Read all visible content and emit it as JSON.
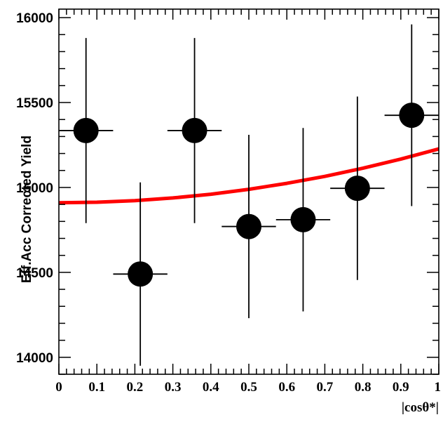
{
  "chart_data": {
    "type": "scatter",
    "title": "",
    "xlabel": "|cosθ*|",
    "ylabel": "Eff.Acc Corrected Yield",
    "xlim": [
      0,
      1
    ],
    "ylim": [
      13900,
      16050
    ],
    "x_ticks": [
      {
        "value": 0,
        "label": "0"
      },
      {
        "value": 0.1,
        "label": "0.1"
      },
      {
        "value": 0.2,
        "label": "0.2"
      },
      {
        "value": 0.3,
        "label": "0.3"
      },
      {
        "value": 0.4,
        "label": "0.4"
      },
      {
        "value": 0.5,
        "label": "0.5"
      },
      {
        "value": 0.6,
        "label": "0.6"
      },
      {
        "value": 0.7,
        "label": "0.7"
      },
      {
        "value": 0.8,
        "label": "0.8"
      },
      {
        "value": 0.9,
        "label": "0.9"
      },
      {
        "value": 1,
        "label": "1"
      }
    ],
    "y_ticks": [
      {
        "value": 14000,
        "label": "14000"
      },
      {
        "value": 14500,
        "label": "14500"
      },
      {
        "value": 15000,
        "label": "15000"
      },
      {
        "value": 15500,
        "label": "15500"
      },
      {
        "value": 16000,
        "label": "16000"
      }
    ],
    "grid": false,
    "series": [
      {
        "points": [
          {
            "x": 0.0714,
            "y": 15335,
            "xerr": 0.0714,
            "yerr": 545
          },
          {
            "x": 0.2143,
            "y": 14490,
            "xerr": 0.0714,
            "yerr": 540
          },
          {
            "x": 0.3571,
            "y": 15335,
            "xerr": 0.0714,
            "yerr": 545
          },
          {
            "x": 0.5,
            "y": 14770,
            "xerr": 0.0714,
            "yerr": 540
          },
          {
            "x": 0.6429,
            "y": 14810,
            "xerr": 0.0714,
            "yerr": 540
          },
          {
            "x": 0.7857,
            "y": 14995,
            "xerr": 0.0714,
            "yerr": 540
          },
          {
            "x": 0.9286,
            "y": 15425,
            "xerr": 0.0714,
            "yerr": 535
          }
        ],
        "color": "#000000"
      },
      {
        "type": "line",
        "x": [
          0,
          0.1,
          0.2,
          0.3,
          0.4,
          0.5,
          0.6,
          0.7,
          0.8,
          0.9,
          1.0
        ],
        "y": [
          14910,
          14913,
          14922,
          14938,
          14960,
          14989,
          15024,
          15065,
          15113,
          15167,
          15227
        ],
        "color": "#ff0000"
      }
    ]
  }
}
